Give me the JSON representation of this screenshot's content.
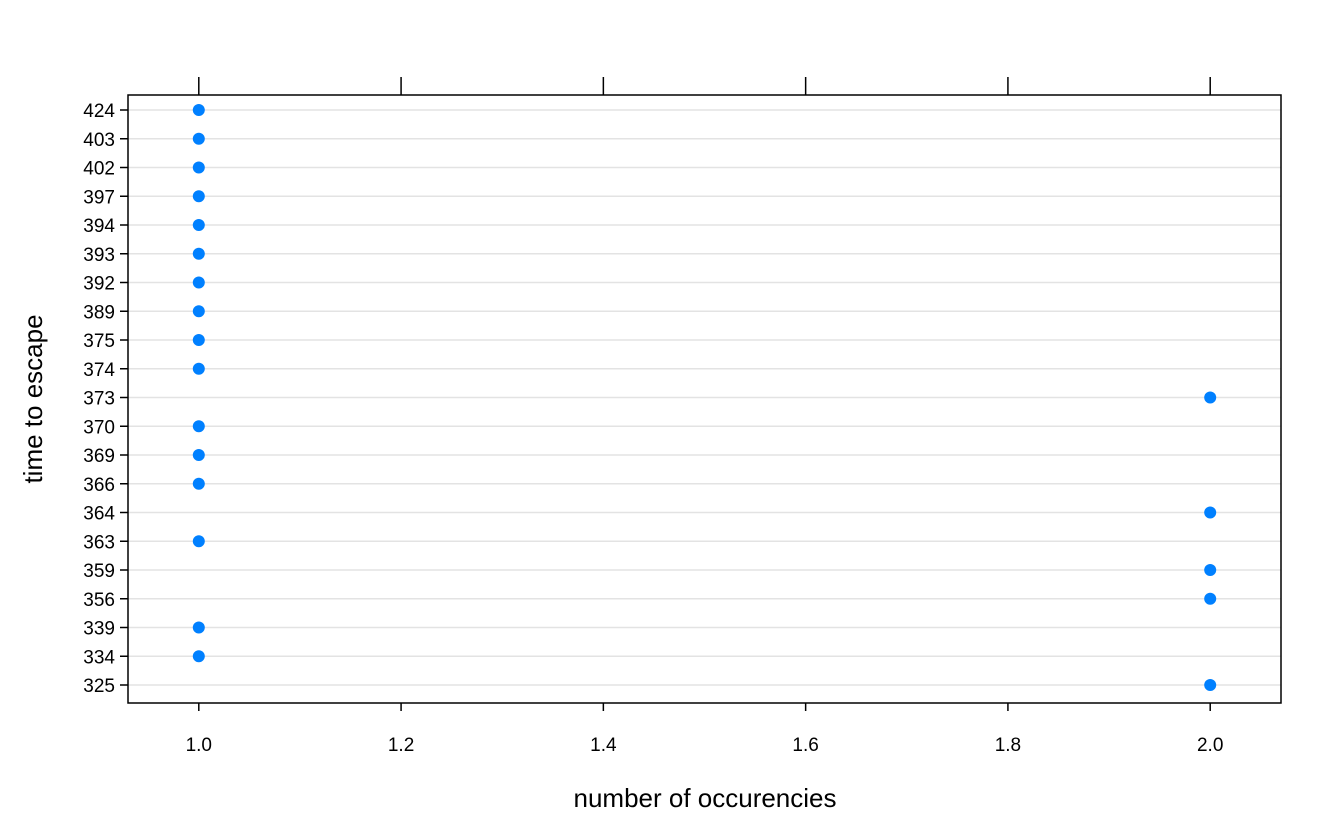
{
  "chart_data": {
    "type": "dotplot",
    "xlabel": "number of occurencies",
    "ylabel": "time to escape",
    "xlim": [
      0.93,
      2.07
    ],
    "x_ticks": [
      "1.0",
      "1.2",
      "1.4",
      "1.6",
      "1.8",
      "2.0"
    ],
    "categories": [
      "325",
      "334",
      "339",
      "356",
      "359",
      "363",
      "364",
      "366",
      "369",
      "370",
      "373",
      "374",
      "375",
      "389",
      "392",
      "393",
      "394",
      "397",
      "402",
      "403",
      "424"
    ],
    "values": [
      2,
      1,
      1,
      2,
      2,
      1,
      2,
      1,
      1,
      1,
      2,
      1,
      1,
      1,
      1,
      1,
      1,
      1,
      1,
      1,
      1
    ],
    "grid": true,
    "point_color": "#0080ff",
    "grid_color": "#e3e3e3"
  }
}
